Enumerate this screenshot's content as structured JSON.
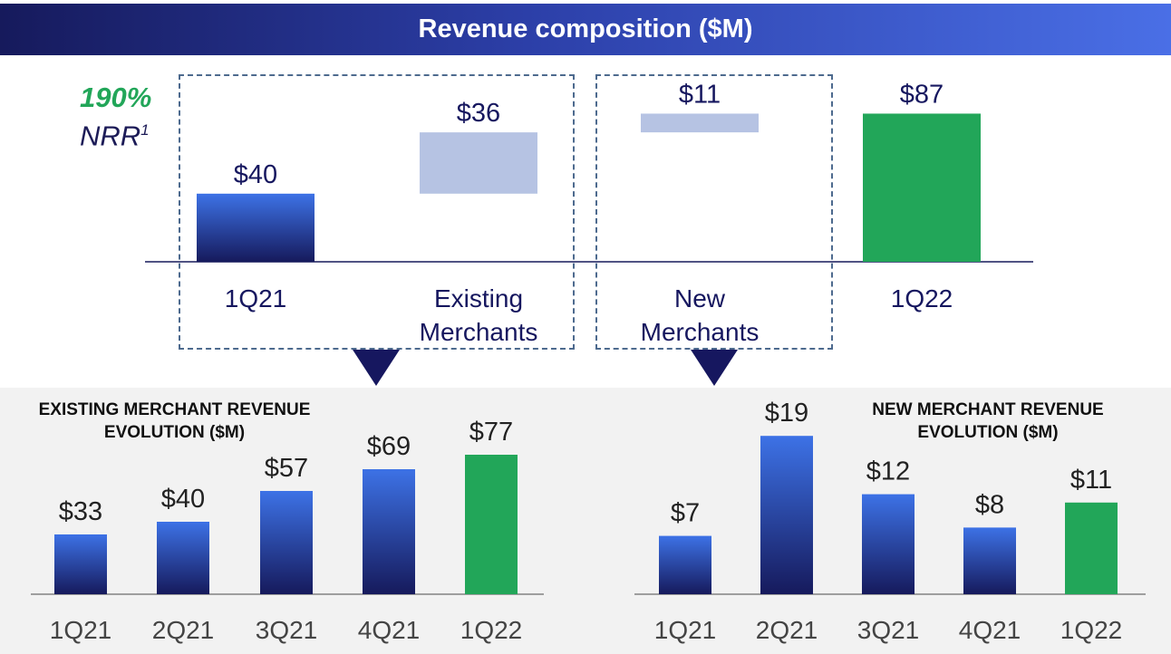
{
  "banner": {
    "title": "Revenue composition ($M)"
  },
  "nrr": {
    "value": "190%",
    "label": "NRR",
    "footnote": "1"
  },
  "colors": {
    "navy": "#161a5c",
    "blue": "#3b6fe0",
    "light_blue": "#b6c3e3",
    "green": "#22a659",
    "gray_bg": "#f2f2f2"
  },
  "chart_data": [
    {
      "type": "bar",
      "subtype": "waterfall",
      "title": "Revenue composition ($M)",
      "categories": [
        "1Q21",
        "Existing Merchants",
        "New Merchants",
        "1Q22"
      ],
      "values": [
        40,
        36,
        11,
        87
      ],
      "data_labels": [
        "$40",
        "$36",
        "$11",
        "$87"
      ],
      "kinds": [
        "total",
        "increment",
        "increment",
        "total"
      ],
      "ylim": [
        0,
        95
      ]
    },
    {
      "type": "bar",
      "title": "EXISTING MERCHANT REVENUE EVOLUTION ($M)",
      "categories": [
        "1Q21",
        "2Q21",
        "3Q21",
        "4Q21",
        "1Q22"
      ],
      "values": [
        33,
        40,
        57,
        69,
        77
      ],
      "data_labels": [
        "$33",
        "$40",
        "$57",
        "$69",
        "$77"
      ],
      "highlight_index": 4,
      "ylim": [
        0,
        90
      ]
    },
    {
      "type": "bar",
      "title": "NEW MERCHANT REVENUE EVOLUTION ($M)",
      "categories": [
        "1Q21",
        "2Q21",
        "3Q21",
        "4Q21",
        "1Q22"
      ],
      "values": [
        7,
        19,
        12,
        8,
        11
      ],
      "data_labels": [
        "$7",
        "$19",
        "$12",
        "$8",
        "$11"
      ],
      "highlight_index": 4,
      "ylim": [
        0,
        22
      ]
    }
  ],
  "existing_panel": {
    "title_line1": "EXISTING MERCHANT REVENUE",
    "title_line2": "EVOLUTION ($M)"
  },
  "new_panel": {
    "title_line1": "NEW MERCHANT REVENUE",
    "title_line2": "EVOLUTION ($M)"
  }
}
